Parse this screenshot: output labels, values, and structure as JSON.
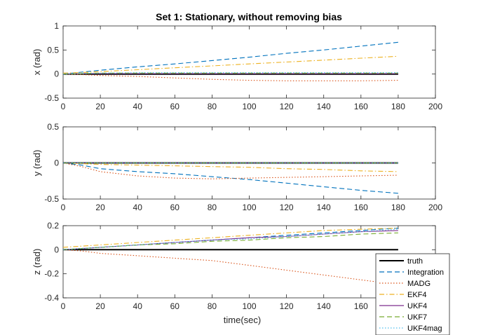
{
  "figure": {
    "title": "Set 1: Stationary, without removing bias"
  },
  "legend": {
    "placement": "bottom-right",
    "entries": [
      "truth",
      "Integration",
      "MADG",
      "EKF4",
      "UKF4",
      "UKF7",
      "UKF4mag"
    ]
  },
  "series_styles": [
    {
      "name": "truth",
      "color": "#000000",
      "dash": "solid"
    },
    {
      "name": "Integration",
      "color": "#0072BD",
      "dash": "dashed"
    },
    {
      "name": "MADG",
      "color": "#D95319",
      "dash": "dotted"
    },
    {
      "name": "EKF4",
      "color": "#EDB120",
      "dash": "dashdot"
    },
    {
      "name": "UKF4",
      "color": "#7E2F8E",
      "dash": "solid"
    },
    {
      "name": "UKF7",
      "color": "#77AC30",
      "dash": "dashed"
    },
    {
      "name": "UKF4mag",
      "color": "#4DBEEE",
      "dash": "dotted"
    }
  ],
  "chart_data": [
    {
      "type": "line",
      "title": "Set 1: Stationary, without removing bias",
      "xlabel": "",
      "ylabel": "x (rad)",
      "xlim": [
        0,
        200
      ],
      "ylim": [
        -0.5,
        1
      ],
      "xticks": [
        "0",
        "20",
        "40",
        "60",
        "80",
        "100",
        "120",
        "140",
        "160",
        "180",
        "200"
      ],
      "yticks": [
        "-0.5",
        "0",
        "0.5",
        "1"
      ],
      "x": [
        0,
        10,
        20,
        40,
        60,
        80,
        100,
        120,
        140,
        160,
        180
      ],
      "series": [
        {
          "name": "truth",
          "values": [
            0,
            0,
            0,
            0,
            0,
            0,
            0,
            0,
            0,
            0,
            0
          ]
        },
        {
          "name": "Integration",
          "values": [
            0,
            0.04,
            0.08,
            0.15,
            0.21,
            0.28,
            0.35,
            0.43,
            0.5,
            0.58,
            0.66
          ]
        },
        {
          "name": "MADG",
          "values": [
            0,
            -0.01,
            -0.03,
            -0.05,
            -0.08,
            -0.11,
            -0.13,
            -0.14,
            -0.14,
            -0.14,
            -0.13
          ]
        },
        {
          "name": "EKF4",
          "values": [
            0.02,
            0.03,
            0.05,
            0.09,
            0.13,
            0.17,
            0.21,
            0.25,
            0.29,
            0.33,
            0.37
          ]
        },
        {
          "name": "UKF4",
          "values": [
            0,
            0.01,
            0.01,
            0.01,
            0.01,
            0.01,
            0.01,
            0.01,
            0.01,
            0.01,
            0.01
          ]
        },
        {
          "name": "UKF7",
          "values": [
            0,
            0.01,
            0.02,
            0.02,
            0.02,
            0.02,
            0.02,
            0.02,
            0.02,
            0.02,
            0.02
          ]
        },
        {
          "name": "UKF4mag",
          "values": [
            0,
            0.01,
            0.02,
            0.03,
            0.03,
            0.03,
            0.03,
            0.03,
            0.03,
            0.03,
            0.03
          ]
        }
      ]
    },
    {
      "type": "line",
      "xlabel": "",
      "ylabel": "y (rad)",
      "xlim": [
        0,
        200
      ],
      "ylim": [
        -0.5,
        0.5
      ],
      "xticks": [
        "0",
        "20",
        "40",
        "60",
        "80",
        "100",
        "120",
        "140",
        "160",
        "180",
        "200"
      ],
      "yticks": [
        "-0.5",
        "0",
        "0.5"
      ],
      "x": [
        0,
        10,
        20,
        40,
        60,
        80,
        100,
        120,
        140,
        160,
        180
      ],
      "series": [
        {
          "name": "truth",
          "values": [
            0,
            0,
            0,
            0,
            0,
            0,
            0,
            0,
            0,
            0,
            0
          ]
        },
        {
          "name": "Integration",
          "values": [
            0,
            -0.03,
            -0.08,
            -0.12,
            -0.15,
            -0.19,
            -0.23,
            -0.28,
            -0.33,
            -0.38,
            -0.42
          ]
        },
        {
          "name": "MADG",
          "values": [
            0,
            -0.05,
            -0.12,
            -0.18,
            -0.21,
            -0.22,
            -0.21,
            -0.2,
            -0.19,
            -0.18,
            -0.17
          ]
        },
        {
          "name": "EKF4",
          "values": [
            0,
            -0.01,
            -0.02,
            -0.03,
            -0.04,
            -0.05,
            -0.06,
            -0.08,
            -0.09,
            -0.11,
            -0.12
          ]
        },
        {
          "name": "UKF4",
          "values": [
            0,
            0,
            0,
            0,
            0,
            0,
            0,
            0,
            0,
            0,
            0
          ]
        },
        {
          "name": "UKF7",
          "values": [
            0,
            0,
            0,
            0,
            0,
            0,
            0,
            0,
            0,
            0,
            0
          ]
        },
        {
          "name": "UKF4mag",
          "values": [
            0,
            0,
            0,
            0,
            0,
            0,
            0,
            0,
            0,
            0,
            0
          ]
        }
      ]
    },
    {
      "type": "line",
      "xlabel": "time(sec)",
      "ylabel": "z (rad)",
      "xlim": [
        0,
        200
      ],
      "ylim": [
        -0.4,
        0.2
      ],
      "xticks": [
        "0",
        "20",
        "40",
        "60",
        "80",
        "100",
        "120",
        "140",
        "160",
        "180",
        "200"
      ],
      "yticks": [
        "-0.4",
        "-0.2",
        "0",
        "0.2"
      ],
      "x": [
        0,
        10,
        20,
        40,
        60,
        80,
        100,
        120,
        140,
        160,
        180
      ],
      "series": [
        {
          "name": "truth",
          "values": [
            0,
            0,
            0,
            0,
            0,
            0,
            0,
            0,
            0,
            0,
            0
          ]
        },
        {
          "name": "Integration",
          "values": [
            0,
            0.01,
            0.02,
            0.04,
            0.06,
            0.08,
            0.1,
            0.12,
            0.14,
            0.16,
            0.18
          ]
        },
        {
          "name": "MADG",
          "values": [
            0,
            -0.01,
            -0.03,
            -0.05,
            -0.07,
            -0.09,
            -0.13,
            -0.17,
            -0.21,
            -0.25,
            -0.29
          ]
        },
        {
          "name": "EKF4",
          "values": [
            0.02,
            0.03,
            0.04,
            0.06,
            0.08,
            0.1,
            0.12,
            0.14,
            0.16,
            0.17,
            0.18
          ]
        },
        {
          "name": "UKF4",
          "values": [
            0,
            0.01,
            0.02,
            0.04,
            0.06,
            0.08,
            0.1,
            0.11,
            0.13,
            0.15,
            0.16
          ]
        },
        {
          "name": "UKF7",
          "values": [
            0,
            0.01,
            0.02,
            0.04,
            0.05,
            0.07,
            0.08,
            0.1,
            0.11,
            0.13,
            0.14
          ]
        },
        {
          "name": "UKF4mag",
          "values": [
            0,
            0.01,
            0.02,
            0.04,
            0.06,
            0.08,
            0.09,
            0.11,
            0.13,
            0.15,
            0.17
          ]
        }
      ]
    }
  ]
}
